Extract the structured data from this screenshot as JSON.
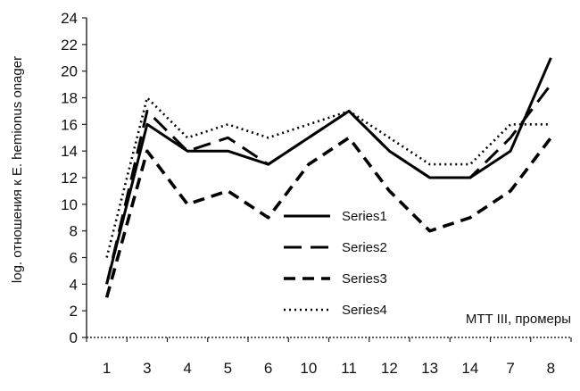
{
  "chart_data": {
    "type": "line",
    "title": "",
    "xlabel": "MTT III, промеры",
    "ylabel": "log. отношения к E. hemionus onager",
    "categories": [
      "1",
      "3",
      "4",
      "5",
      "6",
      "10",
      "11",
      "12",
      "13",
      "14",
      "7",
      "8"
    ],
    "ylim": [
      0,
      24
    ],
    "yticks": [
      0,
      2,
      4,
      6,
      8,
      10,
      12,
      14,
      16,
      18,
      20,
      22,
      24
    ],
    "grid": false,
    "legend_position": "center",
    "series": [
      {
        "name": "Series1",
        "style": "solid",
        "color": "#000000",
        "values": [
          4,
          16,
          14,
          14,
          13,
          15,
          17,
          14,
          12,
          12,
          14,
          21
        ]
      },
      {
        "name": "Series2",
        "style": "long-dash",
        "color": "#000000",
        "values": [
          4,
          17,
          14,
          15,
          13,
          15,
          17,
          14,
          12,
          12,
          15,
          19
        ]
      },
      {
        "name": "Series3",
        "style": "short-dash",
        "color": "#000000",
        "values": [
          3,
          14,
          10,
          11,
          9,
          13,
          15,
          11,
          8,
          9,
          11,
          15
        ]
      },
      {
        "name": "Series4",
        "style": "dotted",
        "color": "#000000",
        "values": [
          6,
          18,
          15,
          16,
          15,
          16,
          17,
          15,
          13,
          13,
          16,
          16
        ]
      }
    ]
  }
}
